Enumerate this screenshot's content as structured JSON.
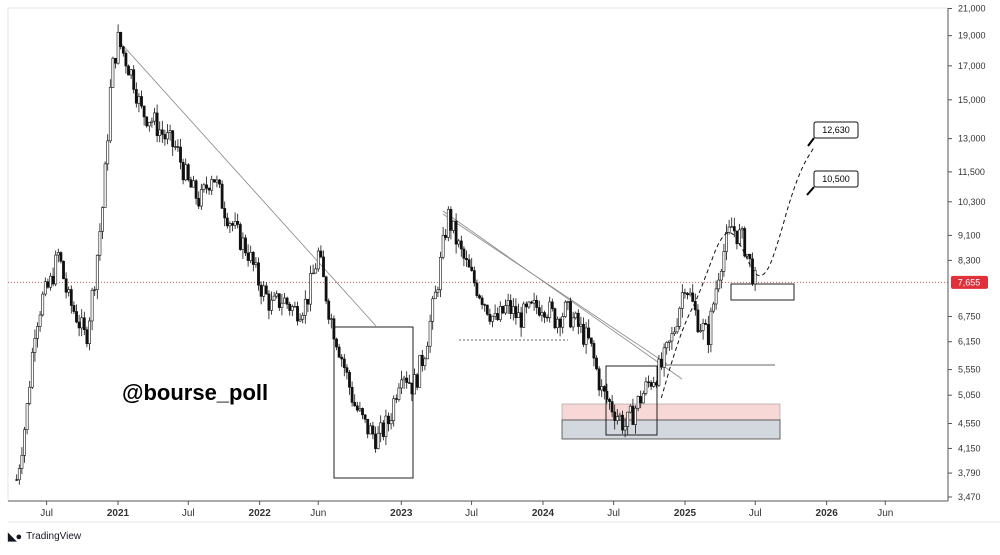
{
  "chart_data": {
    "type": "candlestick",
    "watermark": "@bourse_poll",
    "brand": "TradingView",
    "y_axis": {
      "scale": "log",
      "ticks": [
        "21,000",
        "19,000",
        "17,000",
        "15,000",
        "13,000",
        "11,500",
        "10,300",
        "9,100",
        "8,300",
        "6,750",
        "6,150",
        "5,550",
        "5,050",
        "4,550",
        "4,150",
        "3,790",
        "3,470"
      ],
      "tick_values": [
        21000,
        19000,
        17000,
        15000,
        13000,
        11500,
        10300,
        9100,
        8300,
        6750,
        6150,
        5550,
        5050,
        4550,
        4150,
        3790,
        3470
      ]
    },
    "x_axis": {
      "ticks": [
        {
          "label": "Jul",
          "bold": false,
          "date": "2020-07-01"
        },
        {
          "label": "2021",
          "bold": true,
          "date": "2021-01-01"
        },
        {
          "label": "Jul",
          "bold": false,
          "date": "2021-07-01"
        },
        {
          "label": "2022",
          "bold": true,
          "date": "2022-01-01"
        },
        {
          "label": "Jun",
          "bold": false,
          "date": "2022-06-01"
        },
        {
          "label": "2023",
          "bold": true,
          "date": "2023-01-01"
        },
        {
          "label": "Jul",
          "bold": false,
          "date": "2023-07-01"
        },
        {
          "label": "2024",
          "bold": true,
          "date": "2024-01-01"
        },
        {
          "label": "Jul",
          "bold": false,
          "date": "2024-07-01"
        },
        {
          "label": "2025",
          "bold": true,
          "date": "2025-01-01"
        },
        {
          "label": "Jul",
          "bold": false,
          "date": "2025-07-01"
        },
        {
          "label": "2026",
          "bold": true,
          "date": "2026-01-01"
        },
        {
          "label": "Jun",
          "bold": false,
          "date": "2026-06-01"
        }
      ]
    },
    "current_price": {
      "label": "7,655",
      "value": 7655,
      "color": "#e0303a"
    },
    "targets": [
      {
        "label": "12,630",
        "value": 12630
      },
      {
        "label": "10,500",
        "value": 10500
      }
    ],
    "price_path": [
      [
        "2020-04-15",
        3700
      ],
      [
        "2020-05-10",
        4700
      ],
      [
        "2020-06-01",
        6500
      ],
      [
        "2020-06-20",
        7200
      ],
      [
        "2020-07-10",
        7600
      ],
      [
        "2020-08-01",
        8500
      ],
      [
        "2020-08-25",
        7200
      ],
      [
        "2020-09-15",
        6800
      ],
      [
        "2020-10-10",
        6200
      ],
      [
        "2020-11-01",
        7700
      ],
      [
        "2020-11-25",
        10500
      ],
      [
        "2020-12-15",
        16500
      ],
      [
        "2021-01-01",
        18700
      ],
      [
        "2021-01-20",
        17500
      ],
      [
        "2021-02-10",
        16200
      ],
      [
        "2021-03-01",
        14400
      ],
      [
        "2021-04-01",
        13900
      ],
      [
        "2021-05-01",
        13100
      ],
      [
        "2021-06-01",
        12500
      ],
      [
        "2021-07-01",
        11000
      ],
      [
        "2021-08-01",
        10300
      ],
      [
        "2021-09-01",
        11500
      ],
      [
        "2021-10-01",
        10100
      ],
      [
        "2021-11-01",
        9200
      ],
      [
        "2021-12-01",
        8600
      ],
      [
        "2022-01-01",
        7600
      ],
      [
        "2022-02-01",
        7000
      ],
      [
        "2022-03-01",
        7200
      ],
      [
        "2022-04-01",
        6900
      ],
      [
        "2022-05-01",
        7100
      ],
      [
        "2022-06-01",
        8500
      ],
      [
        "2022-07-01",
        6800
      ],
      [
        "2022-08-01",
        5800
      ],
      [
        "2022-09-01",
        4900
      ],
      [
        "2022-10-01",
        4500
      ],
      [
        "2022-11-01",
        4300
      ],
      [
        "2022-12-01",
        4600
      ],
      [
        "2023-01-01",
        5600
      ],
      [
        "2023-02-01",
        5200
      ],
      [
        "2023-03-01",
        5900
      ],
      [
        "2023-04-01",
        7400
      ],
      [
        "2023-05-01",
        9800
      ],
      [
        "2023-06-01",
        8600
      ],
      [
        "2023-07-01",
        7800
      ],
      [
        "2023-08-01",
        7200
      ],
      [
        "2023-09-01",
        6600
      ],
      [
        "2023-10-01",
        7000
      ],
      [
        "2023-11-01",
        6700
      ],
      [
        "2024-01-01",
        7100
      ],
      [
        "2024-02-01",
        6700
      ],
      [
        "2024-03-01",
        6900
      ],
      [
        "2024-04-01",
        6500
      ],
      [
        "2024-05-01",
        6100
      ],
      [
        "2024-06-01",
        5100
      ],
      [
        "2024-07-01",
        4800
      ],
      [
        "2024-08-01",
        4500
      ],
      [
        "2024-09-01",
        4900
      ],
      [
        "2024-10-01",
        5300
      ],
      [
        "2024-11-01",
        5600
      ],
      [
        "2024-12-01",
        6300
      ],
      [
        "2025-01-01",
        7700
      ],
      [
        "2025-02-01",
        6700
      ],
      [
        "2025-03-01",
        6250
      ],
      [
        "2025-04-01",
        8200
      ],
      [
        "2025-05-01",
        9400
      ],
      [
        "2025-06-01",
        8900
      ],
      [
        "2025-07-01",
        7655
      ]
    ],
    "projection_path": [
      [
        "2024-11-01",
        5000
      ],
      [
        "2024-12-01",
        5800
      ],
      [
        "2025-01-01",
        6600
      ],
      [
        "2025-02-01",
        7200
      ],
      [
        "2025-03-01",
        8000
      ],
      [
        "2025-04-01",
        9000
      ],
      [
        "2025-05-01",
        9300
      ],
      [
        "2025-06-01",
        8600
      ],
      [
        "2025-07-01",
        7800
      ],
      [
        "2025-08-01",
        7900
      ],
      [
        "2025-09-01",
        9000
      ],
      [
        "2025-10-01",
        10500
      ],
      [
        "2025-11-01",
        11800
      ],
      [
        "2025-12-01",
        12630
      ]
    ]
  }
}
